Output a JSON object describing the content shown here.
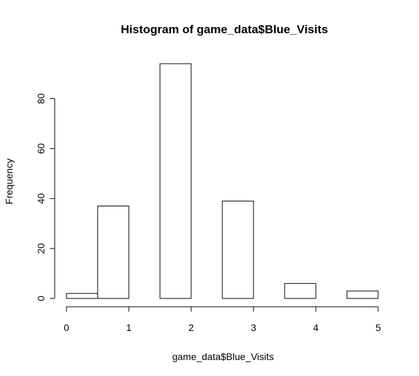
{
  "chart_data": {
    "type": "bar",
    "title": "Histogram of game_data$Blue_Visits",
    "xlabel": "game_data$Blue_Visits",
    "ylabel": "Frequency",
    "bins": [
      {
        "x0": 0.0,
        "x1": 0.5,
        "value": 2
      },
      {
        "x0": 0.5,
        "x1": 1.0,
        "value": 37
      },
      {
        "x0": 1.0,
        "x1": 1.5,
        "value": 0
      },
      {
        "x0": 1.5,
        "x1": 2.0,
        "value": 94
      },
      {
        "x0": 2.0,
        "x1": 2.5,
        "value": 0
      },
      {
        "x0": 2.5,
        "x1": 3.0,
        "value": 39
      },
      {
        "x0": 3.0,
        "x1": 3.5,
        "value": 0
      },
      {
        "x0": 3.5,
        "x1": 4.0,
        "value": 6
      },
      {
        "x0": 4.0,
        "x1": 4.5,
        "value": 0
      },
      {
        "x0": 4.5,
        "x1": 5.0,
        "value": 3
      }
    ],
    "xlim": [
      0,
      5
    ],
    "ylim": [
      0,
      94
    ],
    "x_ticks": [
      0,
      1,
      2,
      3,
      4,
      5
    ],
    "y_ticks": [
      0,
      20,
      40,
      60,
      80
    ],
    "grid": false,
    "legend": "none",
    "bar_fill": "#ffffff",
    "bar_stroke": "#000000"
  }
}
